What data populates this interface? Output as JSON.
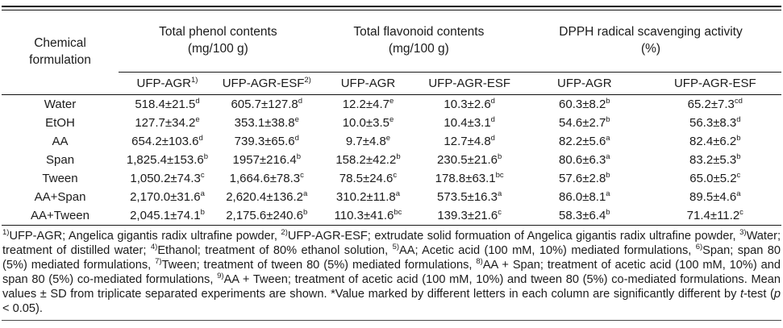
{
  "table": {
    "corner": {
      "line1": "Chemical",
      "line2": "formulation"
    },
    "col_groups": [
      {
        "label": "Total phenol contents",
        "unit": "(mg/100 g)"
      },
      {
        "label": "Total flavonoid contents",
        "unit": "(mg/100 g)"
      },
      {
        "label": "DPPH radical scavenging activity",
        "unit": "(%)"
      }
    ],
    "sub_headers": [
      {
        "label": "UFP-AGR",
        "sup": "1)"
      },
      {
        "label": "UFP-AGR-ESF",
        "sup": "2)"
      },
      {
        "label": "UFP-AGR",
        "sup": ""
      },
      {
        "label": "UFP-AGR-ESF",
        "sup": ""
      },
      {
        "label": "UFP-AGR",
        "sup": ""
      },
      {
        "label": "UFP-AGR-ESF",
        "sup": ""
      }
    ],
    "rows": [
      {
        "name": "Water",
        "cells": [
          [
            "518.4±21.5",
            "d"
          ],
          [
            "605.7±127.8",
            "d"
          ],
          [
            "12.2±4.7",
            "e"
          ],
          [
            "10.3±2.6",
            "d"
          ],
          [
            "60.3±8.2",
            "b"
          ],
          [
            "65.2±7.3",
            "cd"
          ]
        ]
      },
      {
        "name": "EtOH",
        "cells": [
          [
            "127.7±34.2",
            "e"
          ],
          [
            "353.1±38.8",
            "e"
          ],
          [
            "10.0±3.5",
            "e"
          ],
          [
            "10.4±3.1",
            "d"
          ],
          [
            "54.6±2.7",
            "b"
          ],
          [
            "56.3±8.3",
            "d"
          ]
        ]
      },
      {
        "name": "AA",
        "cells": [
          [
            "654.2±103.6",
            "d"
          ],
          [
            "739.3±65.6",
            "d"
          ],
          [
            "9.7±4.8",
            "e"
          ],
          [
            "12.7±4.8",
            "d"
          ],
          [
            "82.2±5.6",
            "a"
          ],
          [
            "82.4±6.2",
            "b"
          ]
        ]
      },
      {
        "name": "Span",
        "cells": [
          [
            "1,825.4±153.6",
            "b"
          ],
          [
            "1957±216.4",
            "b"
          ],
          [
            "158.2±42.2",
            "b"
          ],
          [
            "230.5±21.6",
            "b"
          ],
          [
            "80.6±6.3",
            "a"
          ],
          [
            "83.2±5.3",
            "b"
          ]
        ]
      },
      {
        "name": "Tween",
        "cells": [
          [
            "1,050.2±74.3",
            "c"
          ],
          [
            "1,664.6±78.3",
            "c"
          ],
          [
            "78.5±24.6",
            "c"
          ],
          [
            "178.8±63.1",
            "bc"
          ],
          [
            "57.6±2.8",
            "b"
          ],
          [
            "65.0±5.2",
            "c"
          ]
        ]
      },
      {
        "name": "AA+Span",
        "cells": [
          [
            "2,170.0±31.6",
            "a"
          ],
          [
            "2,620.4±136.2",
            "a"
          ],
          [
            "310.2±11.8",
            "a"
          ],
          [
            "573.5±16.3",
            "a"
          ],
          [
            "86.0±8.1",
            "a"
          ],
          [
            "89.5±4.6",
            "a"
          ]
        ]
      },
      {
        "name": "AA+Tween",
        "cells": [
          [
            "2,045.1±74.1",
            "b"
          ],
          [
            "2,175.6±240.6",
            "b"
          ],
          [
            "110.3±41.6",
            "bc"
          ],
          [
            "139.3±21.6",
            "c"
          ],
          [
            "58.3±6.4",
            "b"
          ],
          [
            "71.4±11.2",
            "c"
          ]
        ]
      }
    ]
  },
  "footnote": {
    "segments": [
      {
        "sup": "1)",
        "text": "UFP-AGR; Angelica gigantis radix ultrafine powder, "
      },
      {
        "sup": "2)",
        "text": "UFP-AGR-ESF; extrudate solid formuation of Angelica gigantis radix ultrafine powder, "
      },
      {
        "sup": "3)",
        "text": "Water; treatment of distilled water; "
      },
      {
        "sup": "4)",
        "text": "Ethanol; treatment of 80% ethanol solution, "
      },
      {
        "sup": "5)",
        "text": "AA; Acetic acid (100 mM, 10%) mediated formulations, "
      },
      {
        "sup": "6)",
        "text": "Span; span 80 (5%) mediated formulations, "
      },
      {
        "sup": "7)",
        "text": "Tween; treatment of tween 80 (5%) mediated formulations, "
      },
      {
        "sup": "8)",
        "text": "AA + Span; treatment of acetic acid (100 mM, 10%) and span 80 (5%) co-mediated formulations, "
      },
      {
        "sup": "9)",
        "text": "AA + Tween; treatment of acetic acid (100 mM, 10%) and tween 80 (5%) co-mediated formulations. Mean values ± SD from triplicate separated experiments are shown. *Value marked by different letters in each column are significantly different by "
      }
    ],
    "italic_t": "t",
    "after_t": "-test (",
    "italic_p": "p",
    "tail": " < 0.05)."
  }
}
